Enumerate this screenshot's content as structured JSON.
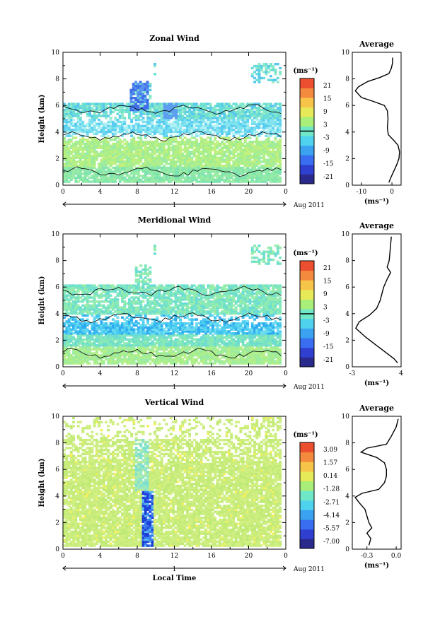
{
  "chart_data": [
    {
      "type": "heatmap",
      "title": "Zonal Wind",
      "ylabel": "Height (km)",
      "xlim": [
        0,
        24
      ],
      "ylim": [
        0,
        10
      ],
      "xticks": [
        "0",
        "4",
        "8",
        "12",
        "16",
        "20",
        "0"
      ],
      "yticks": [
        "0",
        "2",
        "4",
        "6",
        "8",
        "10"
      ],
      "day_axis": {
        "label": "1",
        "range_label": "Aug 2011"
      },
      "colorbar": {
        "unit": "(ms⁻¹)",
        "ticks": [
          "21",
          "15",
          "9",
          "3",
          "-3",
          "-9",
          "-15",
          "-21"
        ]
      },
      "profile": {
        "title": "Average",
        "xlabel": "(ms⁻¹)",
        "xlim": [
          -13,
          3
        ],
        "xticks": [
          "-10",
          "0"
        ],
        "points": [
          [
            -1,
            0.2
          ],
          [
            -0.5,
            0.5
          ],
          [
            0.5,
            1.0
          ],
          [
            1.5,
            1.5
          ],
          [
            2.3,
            2.0
          ],
          [
            2.5,
            2.5
          ],
          [
            2.0,
            3.0
          ],
          [
            0.5,
            3.4
          ],
          [
            -1.2,
            3.8
          ],
          [
            -1.5,
            4.3
          ],
          [
            -1.3,
            5.0
          ],
          [
            -1.5,
            5.6
          ],
          [
            -2.5,
            6.0
          ],
          [
            -6,
            6.3
          ],
          [
            -10,
            6.6
          ],
          [
            -12,
            7.1
          ],
          [
            -11,
            7.4
          ],
          [
            -8,
            7.8
          ],
          [
            -4,
            8.1
          ],
          [
            -1,
            8.4
          ],
          [
            -0.2,
            8.8
          ],
          [
            0.2,
            9.2
          ],
          [
            0.2,
            9.6
          ]
        ]
      }
    },
    {
      "type": "heatmap",
      "title": "Meridional Wind",
      "ylabel": "Height (km)",
      "xlim": [
        0,
        24
      ],
      "ylim": [
        0,
        10
      ],
      "xticks": [
        "0",
        "4",
        "8",
        "12",
        "16",
        "20",
        "0"
      ],
      "yticks": [
        "0",
        "2",
        "4",
        "6",
        "8",
        "10"
      ],
      "day_axis": {
        "label": "1",
        "range_label": "Aug 2011"
      },
      "colorbar": {
        "unit": "(ms⁻¹)",
        "ticks": [
          "21",
          "15",
          "9",
          "3",
          "-3",
          "-9",
          "-15",
          "-21"
        ]
      },
      "profile": {
        "title": "Average",
        "xlabel": "(ms⁻¹)",
        "xlim": [
          -3,
          4
        ],
        "xticks": [
          "-3",
          "4"
        ],
        "points": [
          [
            3.5,
            0.3
          ],
          [
            3.0,
            0.6
          ],
          [
            2.0,
            1.0
          ],
          [
            0.5,
            1.6
          ],
          [
            -1,
            2.2
          ],
          [
            -2.5,
            2.9
          ],
          [
            -2.0,
            3.4
          ],
          [
            -0.5,
            3.9
          ],
          [
            0.5,
            4.4
          ],
          [
            1.0,
            5.0
          ],
          [
            1.3,
            5.6
          ],
          [
            1.5,
            6.0
          ],
          [
            2.0,
            6.6
          ],
          [
            2.5,
            7.1
          ],
          [
            2.0,
            7.5
          ],
          [
            2.3,
            8.0
          ],
          [
            2.4,
            8.6
          ],
          [
            2.5,
            9.2
          ],
          [
            2.6,
            9.8
          ]
        ]
      }
    },
    {
      "type": "heatmap",
      "title": "Vertical Wind",
      "ylabel": "Height (km)",
      "xlabel": "Local Time",
      "xlim": [
        0,
        24
      ],
      "ylim": [
        0,
        10
      ],
      "xticks": [
        "0",
        "4",
        "8",
        "12",
        "16",
        "20",
        "0"
      ],
      "yticks": [
        "0",
        "2",
        "4",
        "6",
        "8",
        "10"
      ],
      "day_axis": {
        "label": "1",
        "range_label": "Aug 2011"
      },
      "colorbar": {
        "unit": "(ms⁻¹)",
        "ticks": [
          "3.09",
          "1.57",
          "0.14",
          "-1.28",
          "-2.71",
          "-4.14",
          "-5.57",
          "-7.00"
        ]
      },
      "profile": {
        "title": "Average",
        "xlabel": "(ms⁻¹)",
        "xlim": [
          -0.45,
          0.05
        ],
        "xticks": [
          "-0.3",
          "0.0"
        ],
        "points": [
          [
            -0.28,
            0.3
          ],
          [
            -0.26,
            0.8
          ],
          [
            -0.3,
            1.2
          ],
          [
            -0.25,
            1.6
          ],
          [
            -0.28,
            2.0
          ],
          [
            -0.3,
            2.5
          ],
          [
            -0.32,
            3.0
          ],
          [
            -0.38,
            3.5
          ],
          [
            -0.42,
            3.9
          ],
          [
            -0.35,
            4.2
          ],
          [
            -0.18,
            4.5
          ],
          [
            -0.12,
            5.0
          ],
          [
            -0.1,
            5.5
          ],
          [
            -0.1,
            6.0
          ],
          [
            -0.12,
            6.5
          ],
          [
            -0.2,
            6.9
          ],
          [
            -0.36,
            7.3
          ],
          [
            -0.3,
            7.6
          ],
          [
            -0.1,
            7.9
          ],
          [
            -0.05,
            8.5
          ],
          [
            0.0,
            9.2
          ],
          [
            0.02,
            9.8
          ]
        ]
      }
    }
  ]
}
